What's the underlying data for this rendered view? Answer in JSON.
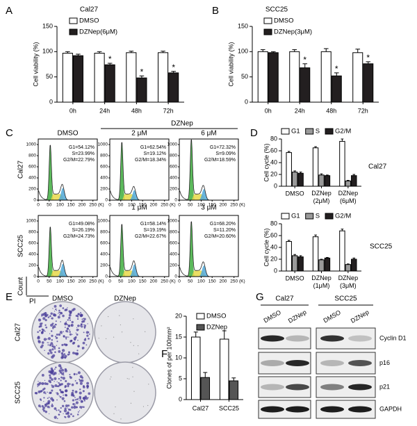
{
  "panel_labels": [
    "A",
    "B",
    "C",
    "D",
    "E",
    "F",
    "G"
  ],
  "chart_data": [
    {
      "type": "bar",
      "title": "Cal27",
      "ylabel": "Cell viability (%)",
      "categories": [
        "0h",
        "24h",
        "48h",
        "72h"
      ],
      "series": [
        {
          "name": "DMSO",
          "color": "#ffffff",
          "values": [
            97,
            97,
            98,
            98
          ],
          "errors": [
            3,
            3,
            3,
            3
          ]
        },
        {
          "name": "DZNep(6μM)",
          "color": "#231f20",
          "values": [
            92,
            74,
            48,
            58
          ],
          "errors": [
            3,
            3,
            4,
            3
          ],
          "markers": [
            null,
            "*",
            "*",
            "*"
          ]
        }
      ],
      "ylim": [
        0,
        150
      ],
      "yticks": [
        0,
        50,
        100,
        150
      ],
      "legend": "upper-left"
    },
    {
      "type": "bar",
      "title": "SCC25",
      "ylabel": "Cell viability (%)",
      "categories": [
        "0h",
        "24h",
        "48h",
        "72h"
      ],
      "series": [
        {
          "name": "DMSO",
          "color": "#ffffff",
          "values": [
            100,
            100,
            100,
            98
          ],
          "errors": [
            4,
            4,
            6,
            7
          ]
        },
        {
          "name": "DZNep(3μM)",
          "color": "#231f20",
          "values": [
            98,
            68,
            52,
            76
          ],
          "errors": [
            2,
            8,
            6,
            4
          ],
          "markers": [
            null,
            "*",
            "*",
            "*"
          ]
        }
      ],
      "ylim": [
        0,
        150
      ],
      "yticks": [
        0,
        50,
        100,
        150
      ],
      "legend": "upper-left"
    },
    {
      "type": "bar",
      "title": "Cal27",
      "ylabel": "Cell cycle (%)",
      "categories": [
        "DMSO",
        "DZNep\n(2μM)",
        "DZNep\n(6μM)"
      ],
      "series": [
        {
          "name": "G1",
          "color": "#ffffff",
          "values": [
            57,
            65,
            76
          ],
          "errors": [
            2,
            2,
            4
          ]
        },
        {
          "name": "S",
          "color": "#9a9a9a",
          "values": [
            24,
            19,
            9
          ],
          "errors": [
            2,
            2,
            1
          ]
        },
        {
          "name": "G2/M",
          "color": "#231f20",
          "values": [
            22,
            18,
            18
          ],
          "errors": [
            2,
            1,
            2
          ]
        }
      ],
      "ylim": [
        0,
        80
      ],
      "yticks": [
        0,
        20,
        40,
        60,
        80
      ],
      "legend": "top"
    },
    {
      "type": "bar",
      "title": "SCC25",
      "ylabel": "Cell cycle (%)",
      "categories": [
        "DMSO",
        "DZNep\n(1μM)",
        "DZNep\n(3μM)"
      ],
      "series": [
        {
          "name": "G1",
          "color": "#ffffff",
          "values": [
            50,
            58,
            68
          ],
          "errors": [
            2,
            3,
            3
          ]
        },
        {
          "name": "S",
          "color": "#9a9a9a",
          "values": [
            26,
            19,
            11
          ],
          "errors": [
            2,
            1,
            1
          ]
        },
        {
          "name": "G2/M",
          "color": "#231f20",
          "values": [
            24,
            22,
            20
          ],
          "errors": [
            2,
            1,
            2
          ]
        }
      ],
      "ylim": [
        0,
        80
      ],
      "yticks": [
        0,
        20,
        40,
        60,
        80
      ],
      "legend": "top"
    },
    {
      "type": "bar",
      "ylabel": "Clones of per 100mm²",
      "categories": [
        "Cal27",
        "SCC25"
      ],
      "series": [
        {
          "name": "DMSO",
          "color": "#ffffff",
          "values": [
            15,
            14.5
          ],
          "errors": [
            1.2,
            2
          ]
        },
        {
          "name": "DZNep",
          "color": "#555555",
          "values": [
            5.3,
            4.5
          ],
          "errors": [
            1.2,
            0.7
          ]
        }
      ],
      "ylim": [
        0,
        20
      ],
      "yticks": [
        0,
        5,
        10,
        15,
        20
      ],
      "legend": "upper-left"
    }
  ],
  "flow_cytometry": {
    "treatment_label": "DZNep",
    "y_axis_label": "Count",
    "x_axis_label": "PI",
    "xticks": [
      0,
      50,
      100,
      150,
      200,
      250
    ],
    "x_unit": "(K)",
    "yticks": [
      0,
      200,
      400,
      600,
      800,
      1000
    ],
    "rows": [
      {
        "label": "Cal27",
        "plots": [
          {
            "header": "DMSO",
            "stats": [
              "G1=54.12%",
              "S=23.99%",
              "G2/M=22.79%"
            ]
          },
          {
            "header": "2 μM",
            "stats": [
              "G1=62.54%",
              "S=19.12%",
              "G2/M=18.34%"
            ]
          },
          {
            "header": "6 μM",
            "stats": [
              "G1=72.32%",
              "S=9.09%",
              "G2/M=18.59%"
            ]
          }
        ]
      },
      {
        "label": "SCC25",
        "plots": [
          {
            "header": null,
            "stats": [
              "G1=49.08%",
              "S=26.19%",
              "G2/M=24.73%"
            ]
          },
          {
            "header": "1 μM",
            "stats": [
              "G1=58.14%",
              "S=19.19%",
              "G2/M=22.67%"
            ]
          },
          {
            "header": "3 μM",
            "stats": [
              "G1=68.20%",
              "S=11.20%",
              "G2/M=20.60%"
            ]
          }
        ]
      }
    ]
  },
  "colony_formation": {
    "columns": [
      "DMSO",
      "DZNep"
    ],
    "rows": [
      "Cal27",
      "SCC25"
    ]
  },
  "western_blot": {
    "groups": [
      {
        "label": "Cal27",
        "lanes": [
          "DMSO",
          "DZNep"
        ]
      },
      {
        "label": "SCC25",
        "lanes": [
          "DMSO",
          "DZNep"
        ]
      }
    ],
    "proteins": [
      "Cyclin D1",
      "p16",
      "p21",
      "GAPDH"
    ]
  }
}
